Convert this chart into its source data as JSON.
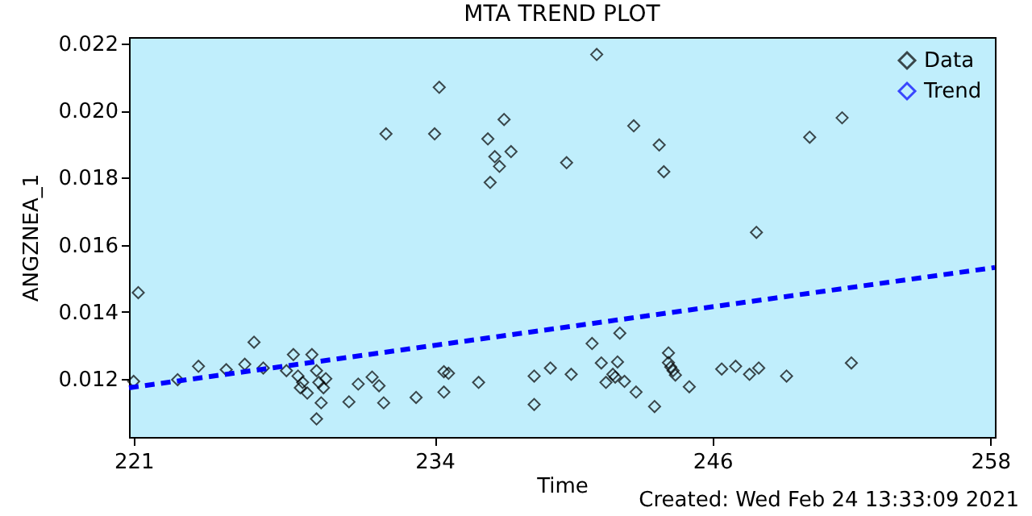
{
  "chart_data": {
    "type": "scatter",
    "title": "MTA TREND PLOT",
    "xlabel": "Time",
    "ylabel": "ANGZNEA_1",
    "annotations": [
      "Created: Wed Feb 24 13:33:09 2021"
    ],
    "marker": "diamond",
    "legend": "top right",
    "grid": false,
    "xlim": [
      220.8,
      258.2
    ],
    "ylim": [
      0.01026,
      0.0222
    ],
    "xticks": [
      221,
      234,
      246,
      258
    ],
    "yticks": [
      {
        "value": 0.012,
        "label": "0.012"
      },
      {
        "value": 0.014,
        "label": "0.014"
      },
      {
        "value": 0.016,
        "label": "0.016"
      },
      {
        "value": 0.018,
        "label": "0.018"
      },
      {
        "value": 0.02,
        "label": "0.020"
      },
      {
        "value": 0.022,
        "label": "0.022"
      }
    ],
    "series": [
      {
        "name": "Data",
        "color": "#000000",
        "x": [
          221.2,
          221.0,
          222.9,
          223.8,
          225.0,
          225.8,
          226.2,
          226.6,
          227.6,
          227.9,
          228.1,
          228.7,
          228.3,
          228.2,
          228.5,
          228.9,
          229.0,
          229.2,
          229.1,
          229.3,
          228.9,
          230.3,
          230.7,
          231.3,
          231.6,
          231.8,
          233.2,
          234.4,
          234.4,
          234.6,
          235.9,
          238.3,
          238.3,
          239.0,
          239.9,
          240.8,
          242.0,
          241.2,
          241.9,
          241.7,
          241.4,
          241.8,
          242.2,
          242.7,
          243.5,
          244.1,
          244.1,
          244.2,
          244.3,
          244.4,
          245.0,
          246.4,
          247.0,
          247.6,
          248.0,
          249.2,
          252.0,
          247.9,
          231.9,
          234.0,
          234.2,
          241.0,
          237.0,
          236.3,
          237.3,
          236.6,
          236.8,
          236.4,
          239.7,
          242.6,
          243.7,
          243.9,
          251.6,
          250.2
        ],
        "values": [
          0.01457,
          0.01192,
          0.01197,
          0.01237,
          0.01227,
          0.01243,
          0.01309,
          0.01232,
          0.01224,
          0.01272,
          0.01208,
          0.01272,
          0.01189,
          0.01173,
          0.01157,
          0.01224,
          0.01189,
          0.01173,
          0.01128,
          0.012,
          0.0108,
          0.01131,
          0.01184,
          0.01205,
          0.01179,
          0.01128,
          0.01144,
          0.0116,
          0.01221,
          0.01216,
          0.01189,
          0.01123,
          0.01208,
          0.01232,
          0.01213,
          0.01305,
          0.01336,
          0.01247,
          0.0125,
          0.01213,
          0.01189,
          0.01205,
          0.01192,
          0.0116,
          0.01117,
          0.01277,
          0.01248,
          0.01235,
          0.01224,
          0.01211,
          0.01176,
          0.01229,
          0.01237,
          0.01213,
          0.01232,
          0.01208,
          0.01247,
          0.01637,
          0.01931,
          0.01931,
          0.0207,
          0.02168,
          0.01974,
          0.01916,
          0.01878,
          0.01863,
          0.01834,
          0.01786,
          0.01845,
          0.01955,
          0.01898,
          0.01818,
          0.01979,
          0.01921
        ]
      },
      {
        "name": "Trend",
        "type": "line",
        "color": "#0000ff",
        "line_style": "dashed",
        "marker": "none",
        "x": [
          220.8,
          258.2
        ],
        "values": [
          0.01173,
          0.01532
        ]
      }
    ]
  }
}
